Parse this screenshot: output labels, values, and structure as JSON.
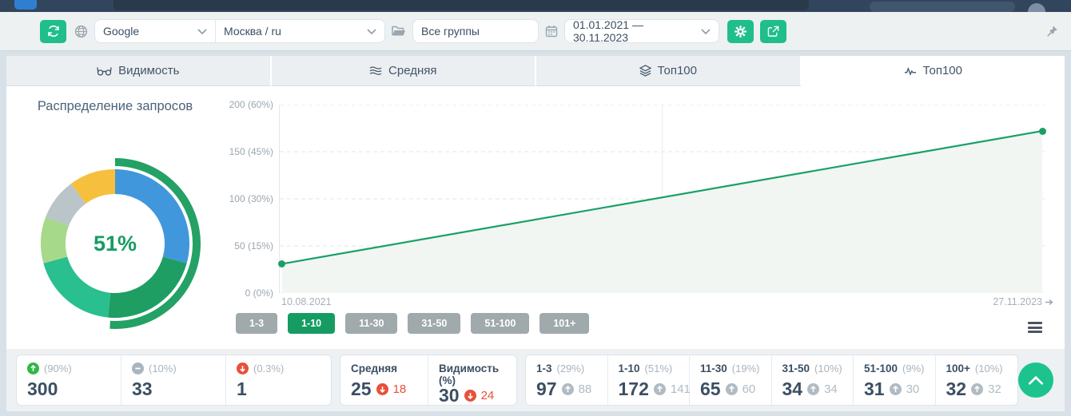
{
  "toolbar": {
    "search_engine": "Google",
    "region": "Москва / ru",
    "groups_value": "Все группы",
    "date_range": "01.01.2021 — 30.11.2023"
  },
  "tabs": [
    {
      "label": "Видимость",
      "icon": "glasses",
      "active": false
    },
    {
      "label": "Средняя",
      "icon": "waves",
      "active": false
    },
    {
      "label": "Топ100",
      "icon": "layers",
      "active": false
    },
    {
      "label": "Топ100",
      "icon": "pulse",
      "active": true
    }
  ],
  "chart_data": [
    {
      "type": "pie",
      "title": "Распределение запросов",
      "center_label": "51%",
      "segments": [
        {
          "label": "1-3",
          "value": 29,
          "color": "#4197dc"
        },
        {
          "label": "4-10",
          "value": 22,
          "color": "#1f9e63"
        },
        {
          "label": "11-30",
          "value": 19,
          "color": "#29bf8e"
        },
        {
          "label": "31-50",
          "value": 10,
          "color": "#a6d989"
        },
        {
          "label": "51-100",
          "value": 9,
          "color": "#bac5c9"
        },
        {
          "label": "101+",
          "value": 10,
          "color": "#f6bf3e"
        }
      ],
      "highlight_ring": {
        "label": "1-10",
        "value": 51,
        "color": "#24a164"
      }
    },
    {
      "type": "line",
      "title": "Топ100",
      "series": [
        {
          "name": "1-10",
          "color": "#1aa066",
          "points": [
            {
              "x": "10.08.2021",
              "y": 31
            },
            {
              "x": "27.11.2023",
              "y": 172
            }
          ]
        }
      ],
      "y_ticks": [
        "200 (60%)",
        "150 (45%)",
        "100 (30%)",
        "50 (15%)",
        "0 (0%)"
      ],
      "ylim": [
        0,
        200
      ],
      "x_start": "10.08.2021",
      "x_end": "27.11.2023",
      "grid": "dashed-horizontal",
      "area_fill": "#f1f6f3"
    }
  ],
  "range_buttons": {
    "items": [
      "1-3",
      "1-10",
      "11-30",
      "31-50",
      "51-100",
      "101+"
    ],
    "active": "1-10"
  },
  "stats": {
    "groups": [
      {
        "cells": [
          {
            "icon_dir": "up",
            "icon_color": "#2eb844",
            "label": "(90%)",
            "value": "300"
          },
          {
            "icon_dir": "minus",
            "icon_color": "#a9b5bd",
            "label": "(10%)",
            "value": "33"
          },
          {
            "icon_dir": "down",
            "icon_color": "#e8503a",
            "label": "(0.3%)",
            "value": "1"
          }
        ]
      },
      {
        "cells": [
          {
            "title": "Средняя",
            "value": "25",
            "delta": "18",
            "delta_dir": "down",
            "delta_color": "#e8503a"
          },
          {
            "title": "Видимость (%)",
            "value": "30",
            "delta": "24",
            "delta_dir": "down",
            "delta_color": "#e8503a"
          }
        ]
      },
      {
        "cells": [
          {
            "title": "1-3",
            "label": "(29%)",
            "value": "97",
            "delta": "88",
            "delta_dir": "up",
            "delta_color": "#b0bbc3"
          },
          {
            "title": "1-10",
            "label": "(51%)",
            "value": "172",
            "delta": "141",
            "delta_dir": "up",
            "delta_color": "#b0bbc3"
          },
          {
            "title": "11-30",
            "label": "(19%)",
            "value": "65",
            "delta": "60",
            "delta_dir": "up",
            "delta_color": "#b0bbc3"
          },
          {
            "title": "31-50",
            "label": "(10%)",
            "value": "34",
            "delta": "34",
            "delta_dir": "up",
            "delta_color": "#b0bbc3"
          },
          {
            "title": "51-100",
            "label": "(9%)",
            "value": "31",
            "delta": "30",
            "delta_dir": "up",
            "delta_color": "#b0bbc3"
          },
          {
            "title": "100+",
            "label": "(10%)",
            "value": "32",
            "delta": "32",
            "delta_dir": "up",
            "delta_color": "#b0bbc3"
          }
        ]
      }
    ]
  },
  "colors": {
    "accent_green": "#1fbe8b",
    "active_green": "#169c62",
    "line_green": "#1aa066",
    "red": "#e8503a",
    "dark_text": "#3b4f63",
    "gray_text": "#9fa9b3"
  }
}
